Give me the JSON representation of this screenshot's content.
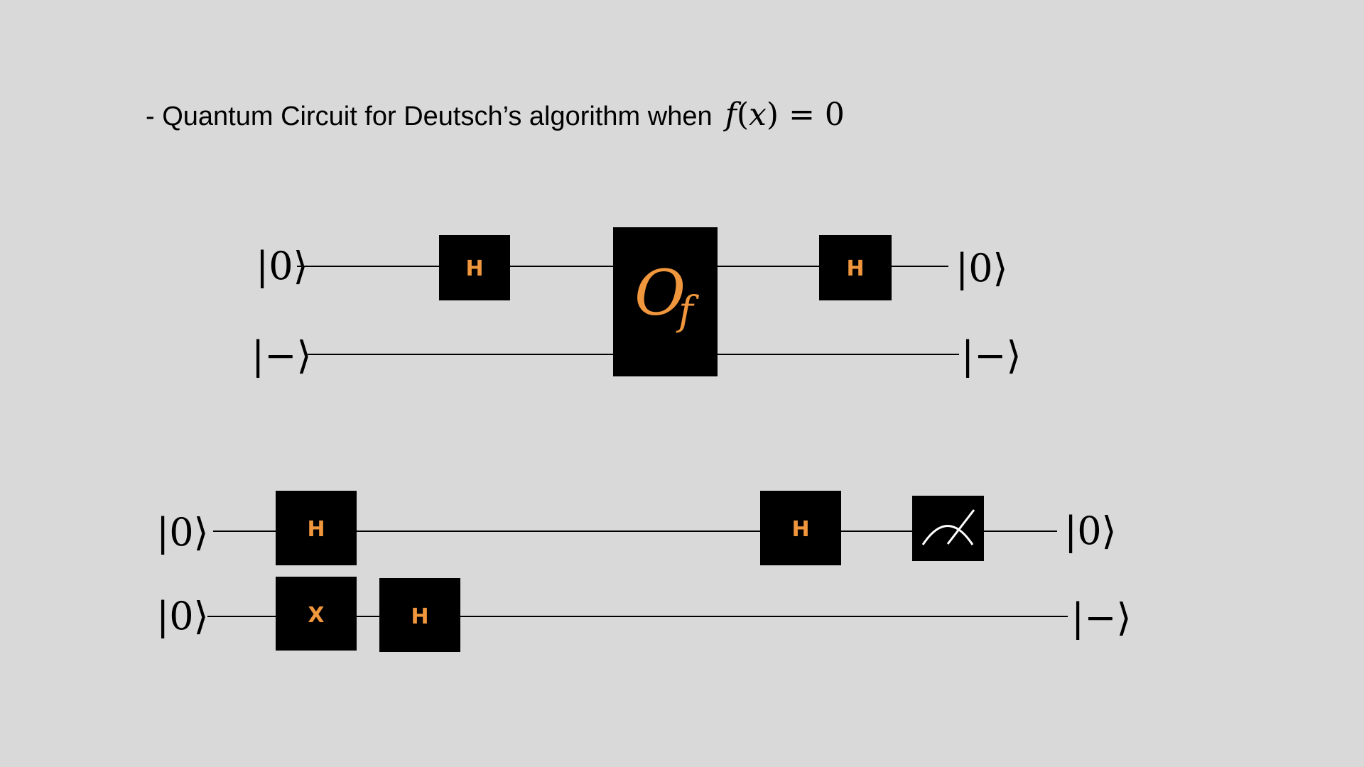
{
  "title": {
    "text": "- Quantum Circuit for Deutsch’s algorithm when",
    "formula_func": "f",
    "formula_open": "(",
    "formula_var": "x",
    "formula_rest": ") = 0"
  },
  "circuit_top": {
    "inputs": [
      "|0⟩",
      "|−⟩"
    ],
    "outputs": [
      "|0⟩",
      "|−⟩"
    ],
    "gate_h1": "H",
    "oracle_main": "O",
    "oracle_sub": "f",
    "gate_h2": "H"
  },
  "circuit_bottom": {
    "inputs": [
      "|0⟩",
      "|0⟩"
    ],
    "outputs": [
      "|0⟩",
      "|−⟩"
    ],
    "gate_h_top_1": "H",
    "gate_x": "X",
    "gate_h_bottom": "H",
    "gate_h_top_2": "H"
  },
  "colors": {
    "background": "#d9d9d9",
    "gate_fill": "#000000",
    "gate_label": "#f0963c",
    "wire": "#000000"
  },
  "icons": {
    "measurement": "measurement-meter-icon"
  }
}
